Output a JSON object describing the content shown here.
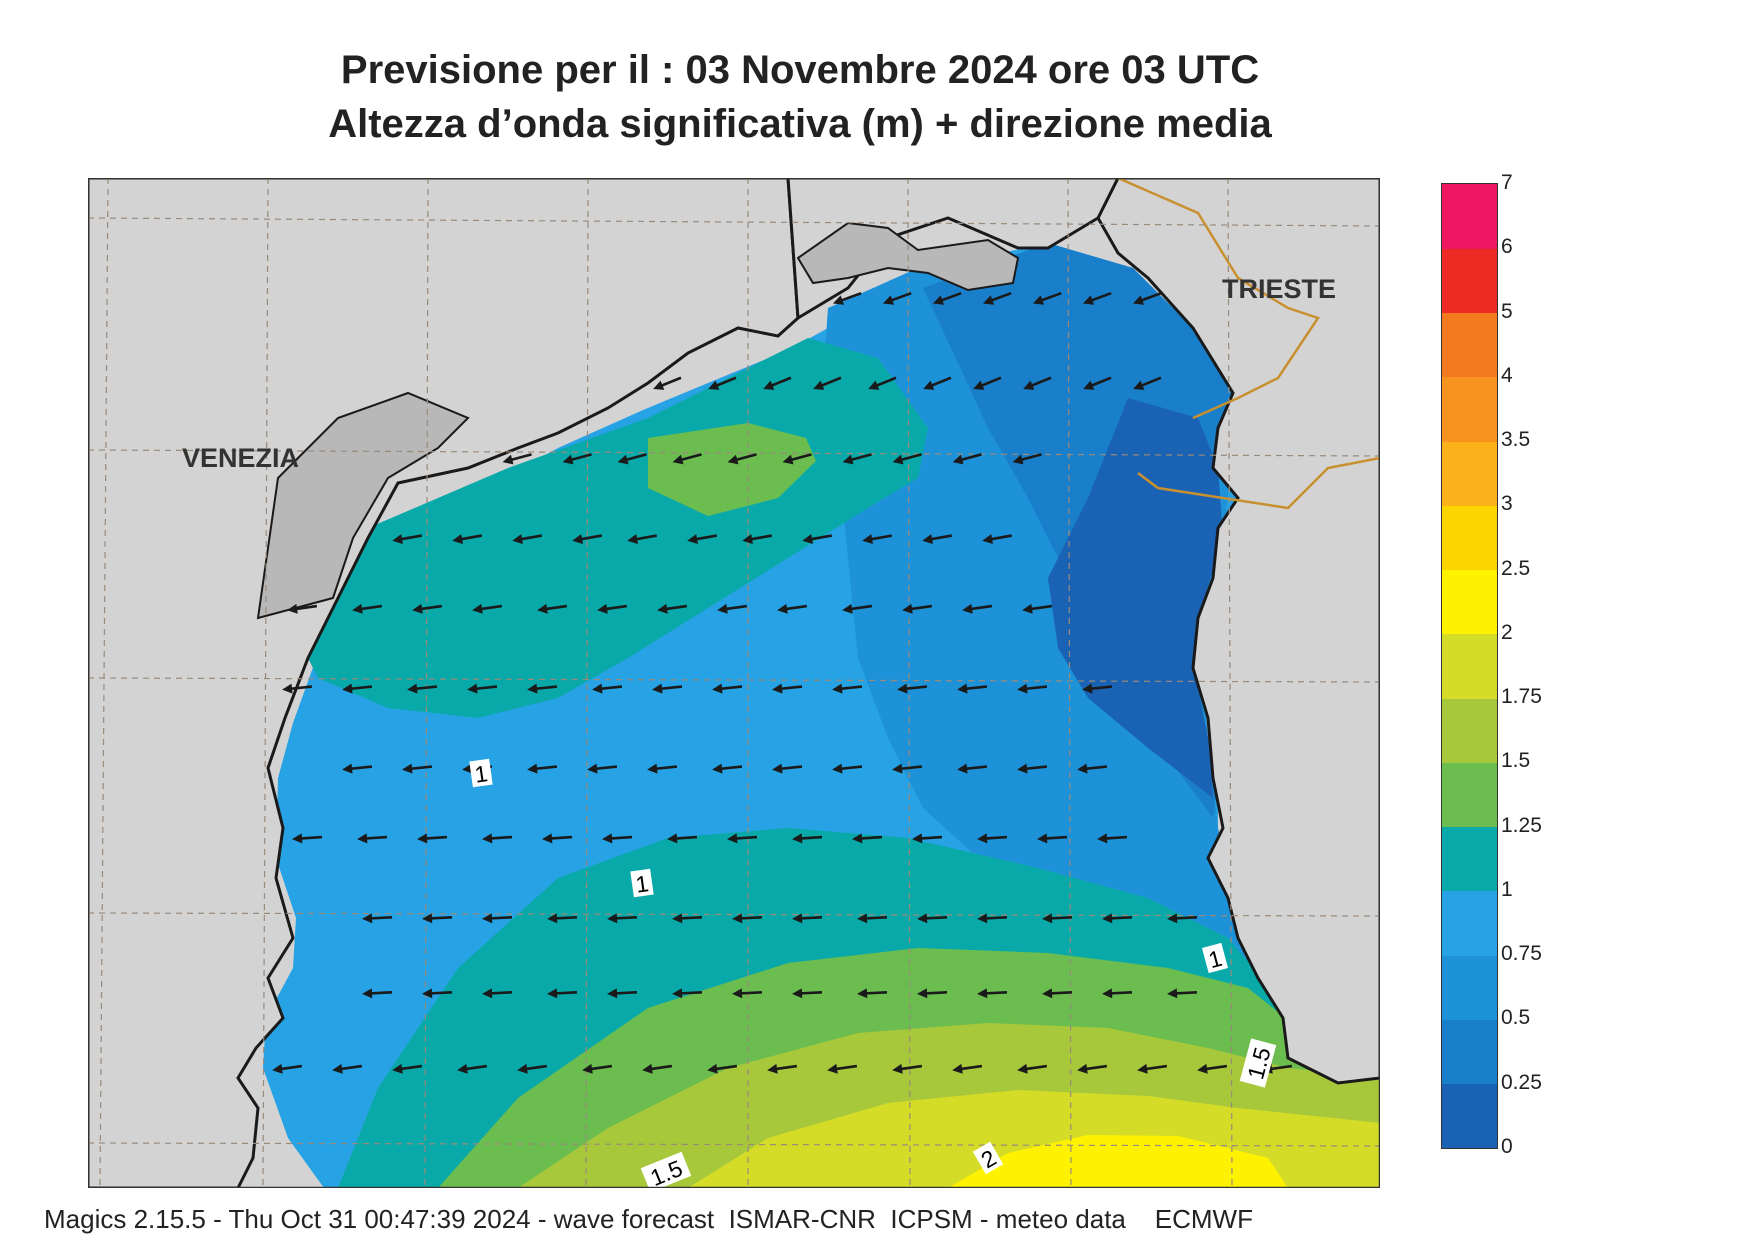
{
  "header": {
    "title_line1": "Previsione per il  :  03 Novembre  2024   ore 03 UTC",
    "title_line2": "Altezza d’onda significativa (m) + direzione media"
  },
  "map": {
    "cities": [
      {
        "name": "VENEZIA"
      },
      {
        "name": "TRIESTE"
      }
    ],
    "contour_labels": [
      "1",
      "1",
      "1",
      "1.5",
      "1.5",
      "2"
    ],
    "colors": {
      "land": "#d3d3d3",
      "coast": "#1a1a1a",
      "border": "#c8902f",
      "arrow": "#1a1a1a"
    }
  },
  "legend": {
    "ticks": [
      "0",
      "0.25",
      "0.5",
      "0.75",
      "1",
      "1.25",
      "1.5",
      "1.75",
      "2",
      "2.5",
      "3",
      "3.5",
      "4",
      "5",
      "6",
      "7"
    ],
    "colors": [
      "#1a63b4",
      "#1a7fcb",
      "#1e92d9",
      "#27a2e4",
      "#0aa9a9",
      "#6cbd50",
      "#a8c83c",
      "#d4dc28",
      "#fff200",
      "#fcd400",
      "#fbb21a",
      "#f7931e",
      "#f47a20",
      "#ee2a24",
      "#ee1660"
    ]
  },
  "footer": {
    "text": "Magics 2.15.5 - Thu Oct 31 00:47:39 2024 - wave forecast  ISMAR-CNR  ICPSM - meteo data    ECMWF"
  }
}
